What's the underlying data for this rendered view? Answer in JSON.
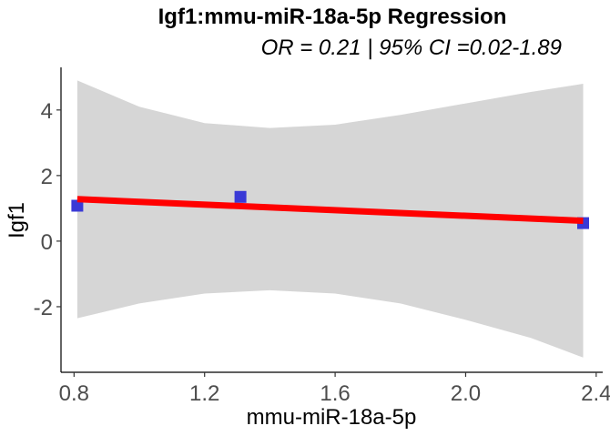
{
  "chart_data": {
    "type": "scatter",
    "title": "Igf1:mmu-miR-18a-5p Regression",
    "subtitle": "OR = 0.21 | 95% CI =0.02-1.89",
    "xlabel": "mmu-miR-18a-5p",
    "ylabel": "Igf1",
    "xlim": [
      0.76,
      2.42
    ],
    "ylim": [
      -4.0,
      5.3
    ],
    "x_ticks": [
      0.8,
      1.2,
      1.6,
      2.0,
      2.4
    ],
    "x_tick_labels": [
      "0.8",
      "1.2",
      "1.6",
      "2.0",
      "2.4"
    ],
    "y_ticks": [
      -2,
      0,
      2,
      4
    ],
    "y_tick_labels": [
      "-2",
      "0",
      "2",
      "4"
    ],
    "grid": false,
    "points": {
      "x": [
        0.81,
        1.31,
        2.36
      ],
      "y": [
        1.08,
        1.35,
        0.55
      ],
      "color": "#3a3ad6"
    },
    "regression_line": {
      "x": [
        0.81,
        2.36
      ],
      "y": [
        1.28,
        0.62
      ],
      "color": "#ff0000"
    },
    "confidence_band": {
      "color": "#d6d6d6",
      "x": [
        0.81,
        1.0,
        1.2,
        1.4,
        1.6,
        1.8,
        2.0,
        2.2,
        2.36
      ],
      "upper": [
        4.9,
        4.1,
        3.6,
        3.45,
        3.55,
        3.85,
        4.2,
        4.55,
        4.8
      ],
      "lower": [
        -2.35,
        -1.9,
        -1.6,
        -1.5,
        -1.6,
        -1.9,
        -2.4,
        -2.95,
        -3.55
      ]
    }
  }
}
